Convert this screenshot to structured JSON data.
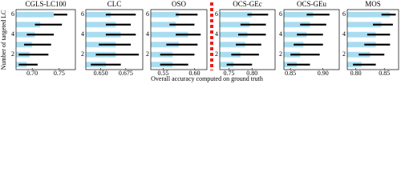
{
  "axis_labels": {
    "y": "Number of targeted LC",
    "x": "Overall accuracy computed on ground truth"
  },
  "chart_data": [
    {
      "type": "bar",
      "title": "CGLS-LC100",
      "color": "#a9dcf0",
      "xlim": [
        0.67,
        0.78
      ],
      "xticks": [
        {
          "value": 0.7,
          "label": "0.70"
        },
        0.75
      ],
      "ylim": [
        0.5,
        6.5
      ],
      "yticks": [
        2,
        4,
        6
      ],
      "y": [
        1,
        2,
        3,
        4,
        5,
        6
      ],
      "values": [
        0.69,
        0.695,
        0.7,
        0.705,
        0.715,
        0.74
      ],
      "low": [
        0.675,
        0.675,
        0.685,
        0.69,
        0.705,
        0.74
      ],
      "high": [
        0.71,
        0.73,
        0.735,
        0.74,
        0.755,
        0.765
      ]
    },
    {
      "type": "bar",
      "title": "CLC",
      "color": "#a9dcf0",
      "xlim": [
        0.635,
        0.692
      ],
      "xticks": [
        {
          "value": 0.65,
          "label": "0.650"
        },
        0.675
      ],
      "ylim": [
        0.5,
        6.5
      ],
      "yticks": [
        2,
        4,
        6
      ],
      "y": [
        1,
        2,
        3,
        4,
        5,
        6
      ],
      "values": [
        0.655,
        0.665,
        0.665,
        0.67,
        0.665,
        0.66
      ],
      "low": [
        0.64,
        0.645,
        0.648,
        0.655,
        0.655,
        0.655
      ],
      "high": [
        0.67,
        0.688,
        0.68,
        0.685,
        0.68,
        0.685
      ]
    },
    {
      "type": "bar",
      "title": "OSO",
      "color": "#a9dcf0",
      "xlim": [
        0.53,
        0.62
      ],
      "xticks": [
        0.55,
        {
          "value": 0.6,
          "label": "0.60"
        }
      ],
      "ylim": [
        0.5,
        6.5
      ],
      "yticks": [
        2,
        4,
        6
      ],
      "y": [
        1,
        2,
        3,
        4,
        5,
        6
      ],
      "values": [
        0.565,
        0.565,
        0.575,
        0.59,
        0.57,
        0.575
      ],
      "low": [
        0.545,
        0.545,
        0.555,
        0.57,
        0.56,
        0.57
      ],
      "high": [
        0.59,
        0.6,
        0.605,
        0.61,
        0.6,
        0.605
      ]
    },
    {
      "type": "bar",
      "title": "OCS-GEc",
      "color": "#a9dcf0",
      "xlim": [
        0.73,
        0.85
      ],
      "xticks": [
        0.75,
        {
          "value": 0.8,
          "label": "0.80"
        }
      ],
      "ylim": [
        0.5,
        6.5
      ],
      "yticks": [
        2,
        4,
        6
      ],
      "y": [
        1,
        2,
        3,
        4,
        5,
        6
      ],
      "values": [
        0.76,
        0.775,
        0.785,
        0.79,
        0.795,
        0.8
      ],
      "low": [
        0.745,
        0.755,
        0.765,
        0.77,
        0.775,
        0.79
      ],
      "high": [
        0.8,
        0.815,
        0.82,
        0.83,
        0.83,
        0.835
      ]
    },
    {
      "type": "bar",
      "title": "OCS-GEu",
      "color": "#a9dcf0",
      "xlim": [
        0.84,
        0.925
      ],
      "xticks": [
        0.85,
        {
          "value": 0.9,
          "label": "0.90"
        }
      ],
      "ylim": [
        0.5,
        6.5
      ],
      "yticks": [
        2,
        4,
        6
      ],
      "y": [
        1,
        2,
        3,
        4,
        5,
        6
      ],
      "values": [
        0.86,
        0.865,
        0.87,
        0.875,
        0.88,
        0.885
      ],
      "low": [
        0.845,
        0.85,
        0.855,
        0.86,
        0.865,
        0.875
      ],
      "high": [
        0.88,
        0.895,
        0.9,
        0.9,
        0.905,
        0.91
      ]
    },
    {
      "type": "bar",
      "title": "MOS",
      "color": "#a9dcf0",
      "xlim": [
        0.785,
        0.875
      ],
      "xticks": [
        {
          "value": 0.8,
          "label": "0.80"
        },
        0.85
      ],
      "ylim": [
        0.5,
        6.5
      ],
      "yticks": [
        2,
        4,
        6
      ],
      "y": [
        1,
        2,
        3,
        4,
        5,
        6
      ],
      "values": [
        0.81,
        0.825,
        0.835,
        0.835,
        0.845,
        0.86
      ],
      "low": [
        0.795,
        0.805,
        0.815,
        0.82,
        0.83,
        0.845
      ],
      "high": [
        0.835,
        0.85,
        0.86,
        0.86,
        0.865,
        0.87
      ]
    }
  ]
}
